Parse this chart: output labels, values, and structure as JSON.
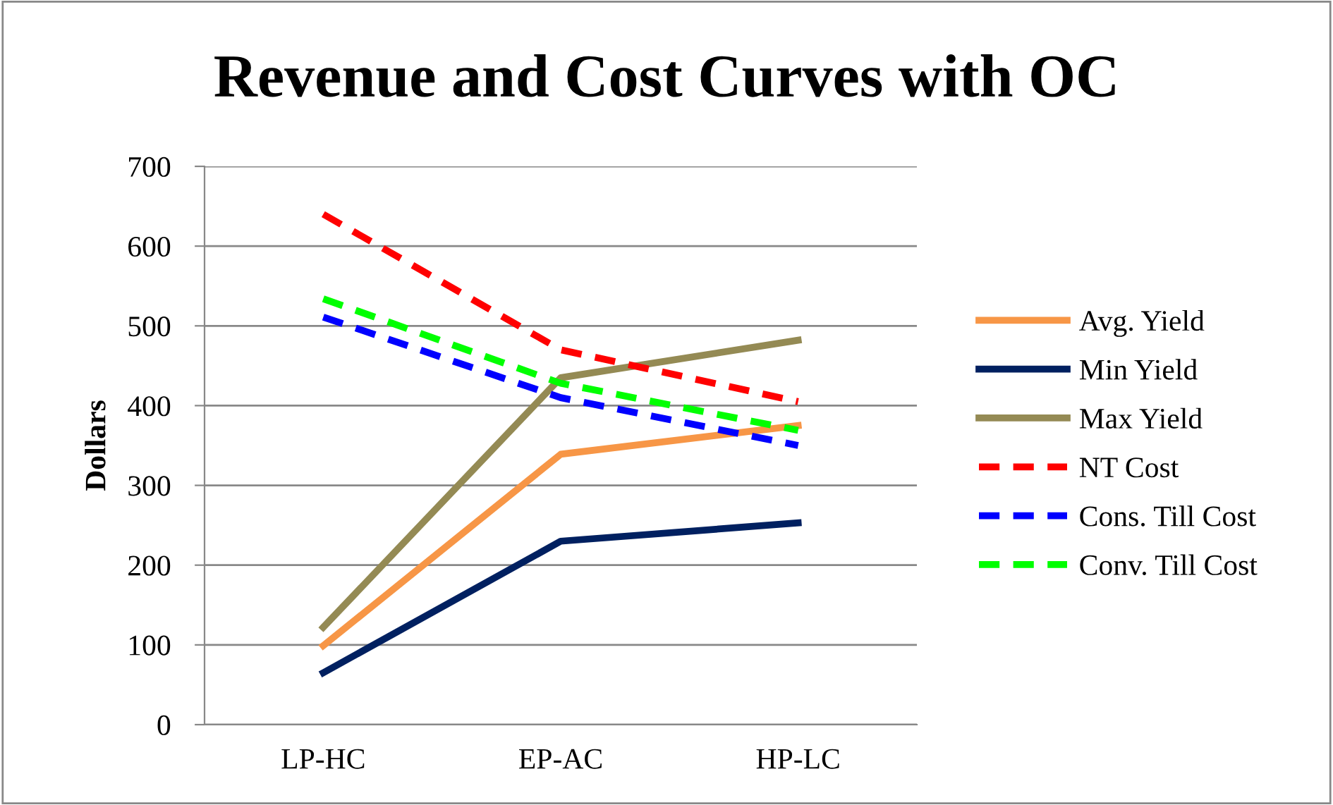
{
  "chart_data": {
    "type": "line",
    "title": "Revenue and Cost Curves with OC",
    "ylabel": "Dollars",
    "categories": [
      "LP-HC",
      "EP-AC",
      "HP-LC"
    ],
    "ylim": [
      0,
      700
    ],
    "yticks": [
      0,
      100,
      200,
      300,
      400,
      500,
      600,
      700
    ],
    "grid": "y",
    "legend": "right",
    "marker": "none",
    "series": [
      {
        "name": "Avg. Yield",
        "color": "#f79646",
        "values": [
          99,
          339,
          375
        ],
        "line_style": "solid"
      },
      {
        "name": "Min Yield",
        "color": "#002060",
        "values": [
          65,
          230,
          253
        ],
        "line_style": "solid"
      },
      {
        "name": "Max Yield",
        "color": "#948a54",
        "values": [
          122,
          435,
          482
        ],
        "line_style": "solid"
      },
      {
        "name": "NT Cost",
        "color": "#ff0000",
        "values": [
          640,
          470,
          405
        ],
        "line_style": "dashed"
      },
      {
        "name": "Cons. Till Cost",
        "color": "#0000ff",
        "values": [
          511,
          410,
          350
        ],
        "line_style": "dashed"
      },
      {
        "name": "Conv. Till Cost",
        "color": "#00ff00",
        "values": [
          534,
          428,
          369
        ],
        "line_style": "dashed"
      }
    ]
  }
}
